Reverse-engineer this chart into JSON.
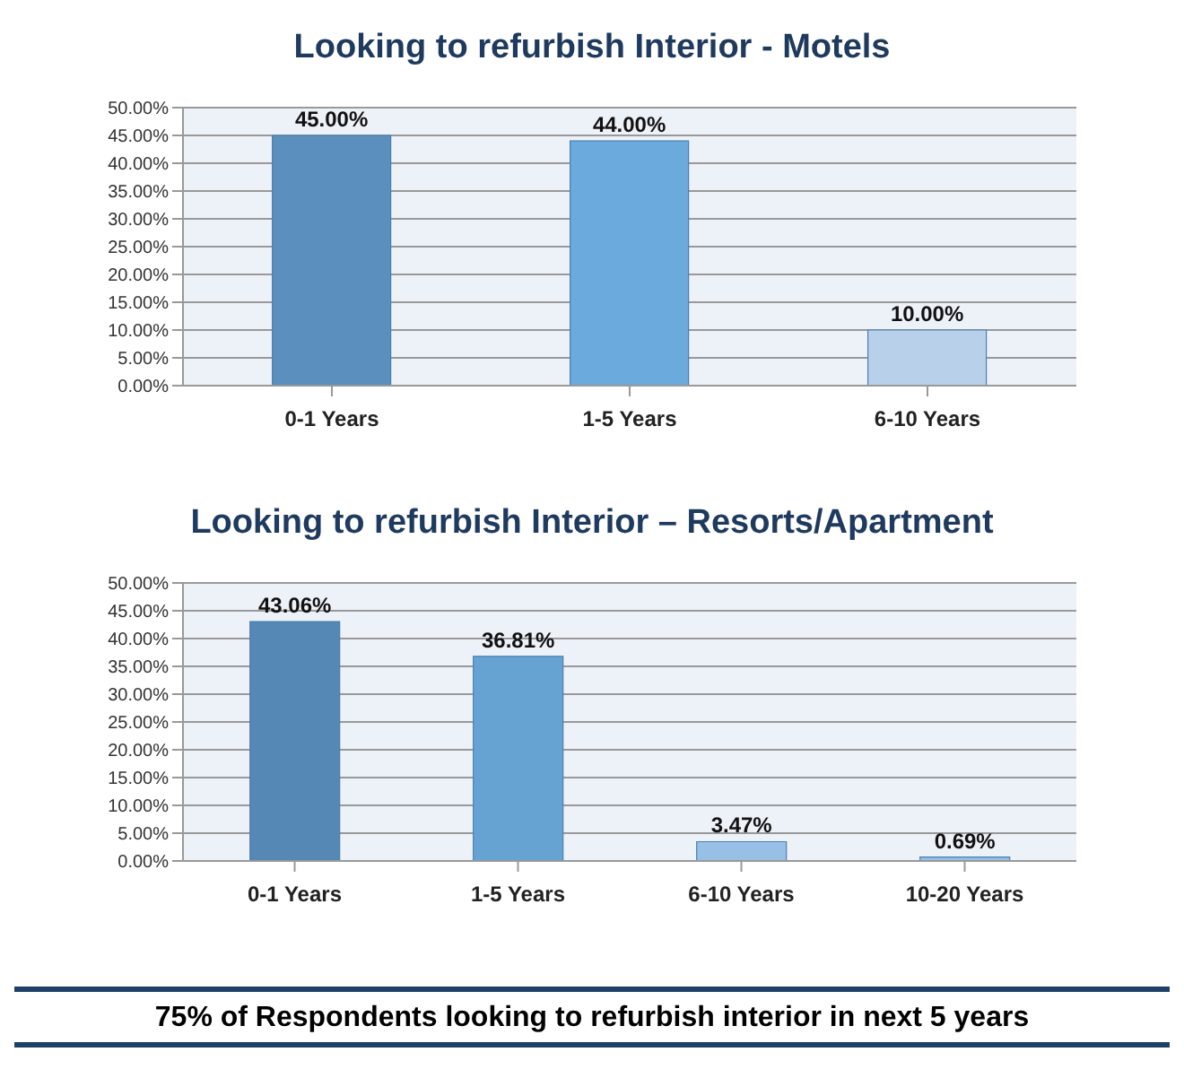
{
  "chart_data": [
    {
      "type": "bar",
      "title": "Looking to refurbish Interior - Motels",
      "categories": [
        "0-1 Years",
        "1-5 Years",
        "6-10 Years"
      ],
      "values": [
        45,
        44,
        10
      ],
      "colors": [
        "#5b8fbd",
        "#6aaadc",
        "#b8d0ea"
      ],
      "value_labels": [
        "45.00%",
        "44.00%",
        "10.00%"
      ],
      "ylim": [
        0,
        50
      ],
      "yticks": [
        {
          "value": 0,
          "label": "0.00%"
        },
        {
          "value": 5,
          "label": "5.00%"
        },
        {
          "value": 10,
          "label": "10.00%"
        },
        {
          "value": 15,
          "label": "15.00%"
        },
        {
          "value": 20,
          "label": "20.00%"
        },
        {
          "value": 25,
          "label": "25.00%"
        },
        {
          "value": 30,
          "label": "30.00%"
        },
        {
          "value": 35,
          "label": "35.00%"
        },
        {
          "value": 40,
          "label": "40.00%"
        },
        {
          "value": 45,
          "label": "45.00%"
        },
        {
          "value": 50,
          "label": "50.00%"
        }
      ],
      "grid": "y",
      "legend": false
    },
    {
      "type": "bar",
      "title": "Looking to refurbish Interior – Resorts/Apartment",
      "categories": [
        "0-1 Years",
        "1-5 Years",
        "6-10 Years",
        "10-20 Years"
      ],
      "values": [
        43.06,
        36.81,
        3.47,
        0.69
      ],
      "colors": [
        "#5588b5",
        "#66a3d3",
        "#98bfe6",
        "#98bfe6"
      ],
      "value_labels": [
        "43.06%",
        "36.81%",
        "3.47%",
        "0.69%"
      ],
      "ylim": [
        0,
        50
      ],
      "yticks": [
        {
          "value": 0,
          "label": "0.00%"
        },
        {
          "value": 5,
          "label": "5.00%"
        },
        {
          "value": 10,
          "label": "10.00%"
        },
        {
          "value": 15,
          "label": "15.00%"
        },
        {
          "value": 20,
          "label": "20.00%"
        },
        {
          "value": 25,
          "label": "25.00%"
        },
        {
          "value": 30,
          "label": "30.00%"
        },
        {
          "value": 35,
          "label": "35.00%"
        },
        {
          "value": 40,
          "label": "40.00%"
        },
        {
          "value": 45,
          "label": "45.00%"
        },
        {
          "value": 50,
          "label": "50.00%"
        }
      ],
      "grid": "y",
      "legend": false,
      "annotations": [
        "75% of Respondents looking to refurbish interior in next 5 years"
      ]
    }
  ]
}
